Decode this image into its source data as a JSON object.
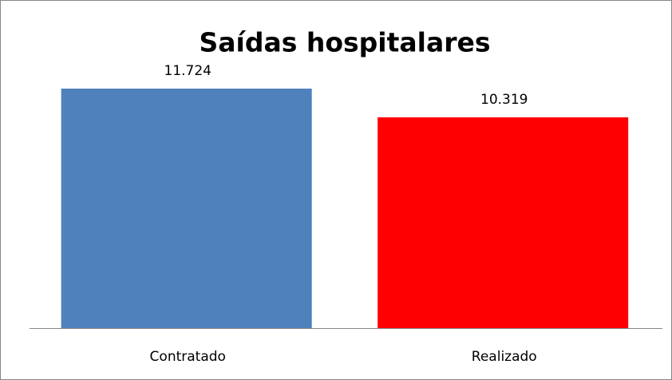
{
  "chart_data": {
    "type": "bar",
    "title": "Saídas hospitalares",
    "categories": [
      "Contratado",
      "Realizado"
    ],
    "values": [
      11724,
      10319
    ],
    "value_labels": [
      "11.724",
      "10.319"
    ],
    "colors": [
      "#4f81bd",
      "#ff0000"
    ]
  }
}
